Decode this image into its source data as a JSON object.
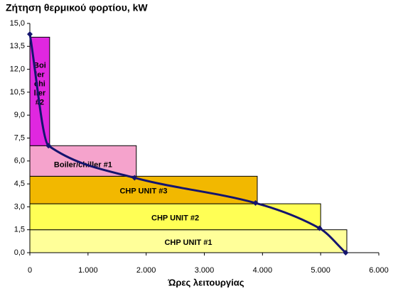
{
  "chart_data": {
    "type": "load-duration",
    "title": "Ζήτηση θερμικού φορτίου, kW",
    "x_label": "Ώρες λειτουργίας",
    "xlim": [
      0,
      6000
    ],
    "xticks": [
      0,
      {
        "value": 1000,
        "label": "1.000"
      },
      {
        "value": 2000,
        "label": "2.000"
      },
      {
        "value": 3000,
        "label": "3.000"
      },
      {
        "value": 4000,
        "label": "4.000"
      },
      {
        "value": 5000,
        "label": "5.000"
      },
      {
        "value": 6000,
        "label": "6.000"
      }
    ],
    "ylim": [
      0,
      15
    ],
    "yticks": [
      {
        "value": 0,
        "label": "0,0"
      },
      {
        "value": 1.5,
        "label": "1,5"
      },
      {
        "value": 3,
        "label": "3,0"
      },
      {
        "value": 4.5,
        "label": "4,5"
      },
      {
        "value": 6,
        "label": "6,0"
      },
      {
        "value": 7.5,
        "label": "7,5"
      },
      {
        "value": 9,
        "label": "9,0"
      },
      {
        "value": 10.5,
        "label": "10,5"
      },
      {
        "value": 12,
        "label": "12,0"
      },
      {
        "value": 13.5,
        "label": "13,5"
      },
      {
        "value": 15,
        "label": "15,0"
      }
    ],
    "blocks": [
      {
        "label": [
          "CHP UNIT #1"
        ],
        "color": "#ffff99",
        "x": [
          0,
          5450
        ],
        "y": [
          0,
          1.5
        ]
      },
      {
        "label": [
          "CHP UNIT #2"
        ],
        "color": "#ffff55",
        "x": [
          0,
          5000
        ],
        "y": [
          1.5,
          3.2
        ]
      },
      {
        "label": [
          "CHP UNIT #3"
        ],
        "color": "#f2b800",
        "x": [
          0,
          3910
        ],
        "y": [
          3.2,
          5.0
        ]
      },
      {
        "label": [
          "Boiler/chiller #1"
        ],
        "color": "#f5a3cc",
        "x": [
          0,
          1830
        ],
        "y": [
          5.0,
          7.0
        ]
      },
      {
        "label": [
          "Boi",
          "ler",
          "chi",
          "ller",
          "#2"
        ],
        "color": "#e027e0",
        "x": [
          0,
          340
        ],
        "y": [
          7.0,
          14.1
        ]
      }
    ],
    "curve": {
      "color": "#14146e",
      "x": [
        0,
        320,
        1800,
        3880,
        4980,
        5430
      ],
      "values": [
        14.3,
        7.0,
        4.9,
        3.25,
        1.6,
        0
      ]
    }
  }
}
